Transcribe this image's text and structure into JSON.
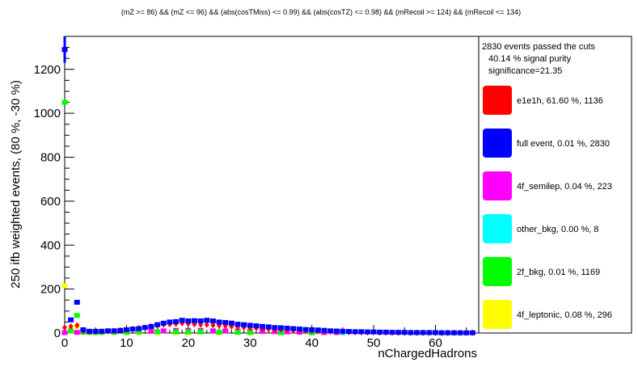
{
  "chart_data": {
    "type": "scatter",
    "title": "(mZ >=  86) && (mZ <=  96) && (abs(cosTMiss) <=  0.99) && (abs(cosTZ) <=  0.98) && (mRecoil >=  124) && (mRecoil <=  134)",
    "xlabel": "nChargedHadrons",
    "ylabel": "250 ifb weighted events, (80 %, -30 %)",
    "xlim": [
      0,
      67
    ],
    "ylim": [
      0,
      1350
    ],
    "x_ticks": [
      0,
      10,
      20,
      30,
      40,
      50,
      60
    ],
    "y_ticks": [
      0,
      200,
      400,
      600,
      800,
      1000,
      1200
    ],
    "legend": {
      "placement": "right",
      "header": [
        "2830 events passed the cuts",
        "40.14 % signal purity",
        "significance=21.35"
      ],
      "entries": [
        {
          "label": "e1e1h, 61.60 %, 1136",
          "color": "#ff0000"
        },
        {
          "label": "full event, 0.01 %, 2830",
          "color": "#0000ff"
        },
        {
          "label": "4f_semilep, 0.04 %, 223",
          "color": "#ff00ff"
        },
        {
          "label": "other_bkg, 0.00 %, 8",
          "color": "#00ffff"
        },
        {
          "label": "2f_bkg, 0.01 %, 1169",
          "color": "#00ff00"
        },
        {
          "label": "4f_leptonic, 0.08 %, 296",
          "color": "#ffff00"
        }
      ]
    },
    "series": [
      {
        "name": "full event",
        "color": "#0000ff",
        "marker": "square",
        "x": [
          0,
          1,
          2,
          3,
          4,
          5,
          6,
          7,
          8,
          9,
          10,
          11,
          12,
          13,
          14,
          15,
          16,
          17,
          18,
          19,
          20,
          21,
          22,
          23,
          24,
          25,
          26,
          27,
          28,
          29,
          30,
          31,
          32,
          33,
          34,
          35,
          36,
          37,
          38,
          39,
          40,
          41,
          42,
          43,
          44,
          45,
          46,
          47,
          48,
          49,
          50,
          51,
          52,
          53,
          54,
          55,
          56,
          57,
          58,
          59,
          60,
          61,
          62,
          63,
          64,
          65,
          66
        ],
        "y": [
          1290,
          60,
          140,
          15,
          8,
          8,
          8,
          10,
          10,
          12,
          15,
          18,
          20,
          25,
          30,
          38,
          45,
          50,
          52,
          58,
          55,
          56,
          55,
          58,
          55,
          50,
          48,
          45,
          40,
          38,
          35,
          33,
          30,
          28,
          25,
          24,
          22,
          20,
          18,
          16,
          15,
          14,
          12,
          10,
          9,
          8,
          7,
          6,
          6,
          5,
          5,
          4,
          4,
          3,
          3,
          3,
          2,
          2,
          2,
          2,
          2,
          1,
          1,
          1,
          1,
          1,
          1
        ]
      },
      {
        "name": "e1e1h",
        "color": "#ff0000",
        "marker": "diamond",
        "x": [
          0,
          1,
          2,
          3,
          4,
          5,
          6,
          7,
          8,
          9,
          10,
          11,
          12,
          13,
          14,
          15,
          16,
          17,
          18,
          19,
          20,
          21,
          22,
          23,
          24,
          25,
          26,
          27,
          28,
          29,
          30,
          31,
          32,
          33,
          34,
          35,
          36,
          37,
          38,
          39,
          40,
          41,
          42,
          43,
          44,
          45,
          46,
          47,
          48,
          49,
          50,
          51,
          52,
          53,
          54,
          55,
          56,
          57,
          58,
          59,
          60,
          61,
          62,
          63,
          64,
          65,
          66
        ],
        "y": [
          25,
          30,
          35,
          8,
          5,
          5,
          6,
          8,
          10,
          12,
          15,
          18,
          22,
          25,
          30,
          33,
          38,
          40,
          42,
          45,
          42,
          40,
          38,
          38,
          36,
          34,
          32,
          30,
          28,
          26,
          24,
          22,
          20,
          18,
          16,
          15,
          14,
          13,
          12,
          10,
          9,
          8,
          7,
          6,
          5,
          5,
          4,
          4,
          3,
          3,
          3,
          2,
          2,
          2,
          2,
          1,
          1,
          1,
          1,
          1,
          1,
          1,
          1,
          1,
          1,
          1,
          1
        ]
      },
      {
        "name": "4f_semilep",
        "color": "#ff00ff",
        "marker": "square",
        "x": [
          0,
          2,
          4,
          6,
          8,
          10,
          12,
          14,
          16,
          18,
          20,
          22,
          24,
          26,
          28,
          30,
          32,
          34,
          36,
          38,
          40,
          42,
          44
        ],
        "y": [
          2,
          3,
          3,
          4,
          5,
          6,
          7,
          8,
          10,
          12,
          12,
          12,
          10,
          10,
          9,
          8,
          7,
          6,
          5,
          4,
          3,
          2,
          2
        ]
      },
      {
        "name": "other_bkg",
        "color": "#00ffff",
        "marker": "square",
        "x": [
          0,
          5,
          10,
          15,
          20,
          25,
          30,
          35,
          40,
          45
        ],
        "y": [
          1,
          1,
          1,
          1,
          1,
          1,
          1,
          1,
          1,
          1
        ]
      },
      {
        "name": "2f_bkg",
        "color": "#00ff00",
        "marker": "square",
        "x": [
          0,
          1,
          2,
          3,
          4,
          5,
          6,
          8,
          10,
          12,
          15,
          18,
          20,
          22,
          25,
          28,
          30,
          35,
          40
        ],
        "y": [
          1050,
          10,
          80,
          4,
          3,
          3,
          3,
          3,
          4,
          5,
          6,
          5,
          5,
          5,
          4,
          3,
          3,
          2,
          1
        ]
      },
      {
        "name": "4f_leptonic",
        "color": "#ffff00",
        "marker": "square",
        "x": [
          0,
          1,
          2,
          3,
          4,
          5,
          6,
          8,
          10,
          12,
          15,
          18,
          20,
          25,
          30
        ],
        "y": [
          215,
          10,
          30,
          5,
          3,
          2,
          2,
          2,
          2,
          2,
          2,
          2,
          1,
          1,
          1
        ]
      }
    ]
  }
}
